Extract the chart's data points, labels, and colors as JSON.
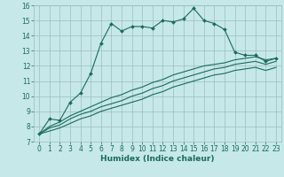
{
  "xlabel": "Humidex (Indice chaleur)",
  "background_color": "#c6e8e8",
  "grid_color": "#9dbdbd",
  "line_color": "#1a6b5a",
  "xlim": [
    -0.5,
    23.5
  ],
  "ylim": [
    7,
    16
  ],
  "xticks": [
    0,
    1,
    2,
    3,
    4,
    5,
    6,
    7,
    8,
    9,
    10,
    11,
    12,
    13,
    14,
    15,
    16,
    17,
    18,
    19,
    20,
    21,
    22,
    23
  ],
  "yticks": [
    7,
    8,
    9,
    10,
    11,
    12,
    13,
    14,
    15,
    16
  ],
  "series1_x": [
    0,
    1,
    2,
    3,
    4,
    5,
    6,
    7,
    8,
    9,
    10,
    11,
    12,
    13,
    14,
    15,
    16,
    17,
    18,
    19,
    20,
    21,
    22,
    23
  ],
  "series1_y": [
    7.5,
    8.5,
    8.4,
    9.6,
    10.2,
    11.5,
    13.5,
    14.8,
    14.3,
    14.6,
    14.6,
    14.5,
    15.0,
    14.9,
    15.1,
    15.8,
    15.0,
    14.8,
    14.4,
    12.9,
    12.7,
    12.7,
    12.3,
    12.5
  ],
  "series2_x": [
    0,
    1,
    2,
    3,
    4,
    5,
    6,
    7,
    8,
    9,
    10,
    11,
    12,
    13,
    14,
    15,
    16,
    17,
    18,
    19,
    20,
    21,
    22,
    23
  ],
  "series2_y": [
    7.5,
    8.0,
    8.3,
    8.7,
    9.0,
    9.3,
    9.6,
    9.9,
    10.1,
    10.4,
    10.6,
    10.9,
    11.1,
    11.4,
    11.6,
    11.8,
    12.0,
    12.1,
    12.2,
    12.4,
    12.5,
    12.6,
    12.4,
    12.5
  ],
  "series3_x": [
    0,
    1,
    2,
    3,
    4,
    5,
    6,
    7,
    8,
    9,
    10,
    11,
    12,
    13,
    14,
    15,
    16,
    17,
    18,
    19,
    20,
    21,
    22,
    23
  ],
  "series3_y": [
    7.5,
    7.9,
    8.1,
    8.5,
    8.8,
    9.0,
    9.3,
    9.5,
    9.7,
    10.0,
    10.2,
    10.5,
    10.7,
    11.0,
    11.2,
    11.4,
    11.6,
    11.8,
    11.9,
    12.1,
    12.2,
    12.3,
    12.1,
    12.3
  ],
  "series4_x": [
    0,
    1,
    2,
    3,
    4,
    5,
    6,
    7,
    8,
    9,
    10,
    11,
    12,
    13,
    14,
    15,
    16,
    17,
    18,
    19,
    20,
    21,
    22,
    23
  ],
  "series4_y": [
    7.5,
    7.7,
    7.9,
    8.2,
    8.5,
    8.7,
    9.0,
    9.2,
    9.4,
    9.6,
    9.8,
    10.1,
    10.3,
    10.6,
    10.8,
    11.0,
    11.2,
    11.4,
    11.5,
    11.7,
    11.8,
    11.9,
    11.7,
    11.9
  ],
  "tick_fontsize": 5.5,
  "xlabel_fontsize": 6.5,
  "lw": 0.8,
  "marker_size": 2.0
}
